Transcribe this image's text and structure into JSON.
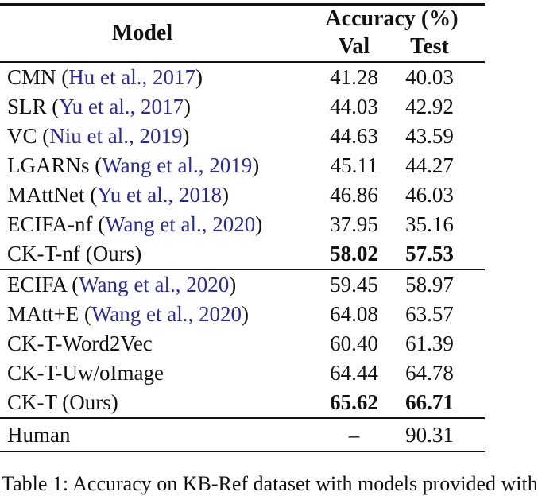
{
  "colors": {
    "text": "#111111",
    "citation_link": "#2a2a9a",
    "rule": "#111111",
    "background": "#ffffff"
  },
  "table": {
    "header": {
      "model": "Model",
      "accuracy_group": "Accuracy (%)",
      "val": "Val",
      "test": "Test"
    },
    "sections": [
      {
        "rows": [
          {
            "model": "CMN",
            "citation": "Hu et al., 2017",
            "val": "41.28",
            "test": "40.03",
            "bold_values": false
          },
          {
            "model": "SLR",
            "citation": "Yu et al., 2017",
            "val": "44.03",
            "test": "42.92",
            "bold_values": false
          },
          {
            "model": "VC",
            "citation": "Niu et al., 2019",
            "val": "44.63",
            "test": "43.59",
            "bold_values": false
          },
          {
            "model": "LGARNs",
            "citation": "Wang et al., 2019",
            "val": "45.11",
            "test": "44.27",
            "bold_values": false
          },
          {
            "model": "MAttNet",
            "citation": "Yu et al., 2018",
            "val": "46.86",
            "test": "46.03",
            "bold_values": false
          },
          {
            "model": "ECIFA-nf",
            "citation": "Wang et al., 2020",
            "val": "37.95",
            "test": "35.16",
            "bold_values": false
          },
          {
            "model": "CK-T-nf (Ours)",
            "citation": null,
            "val": "58.02",
            "test": "57.53",
            "bold_values": true
          }
        ]
      },
      {
        "rows": [
          {
            "model": "ECIFA",
            "citation": "Wang et al., 2020",
            "val": "59.45",
            "test": "58.97",
            "bold_values": false
          },
          {
            "model": "MAtt+E",
            "citation": "Wang et al., 2020",
            "val": "64.08",
            "test": "63.57",
            "bold_values": false
          },
          {
            "model": "CK-T-Word2Vec",
            "citation": null,
            "val": "60.40",
            "test": "61.39",
            "bold_values": false
          },
          {
            "model": "CK-T-Uw/oImage",
            "citation": null,
            "val": "64.44",
            "test": "64.78",
            "bold_values": false
          },
          {
            "model": "CK-T (Ours)",
            "citation": null,
            "val": "65.62",
            "test": "66.71",
            "bold_values": true
          }
        ]
      },
      {
        "rows": [
          {
            "model": "Human",
            "citation": null,
            "val": "–",
            "test": "90.31",
            "bold_values": false
          }
        ]
      }
    ],
    "caption_visible_fragment": "Table 1: Accuracy on KB-Ref dataset with models provided with"
  }
}
